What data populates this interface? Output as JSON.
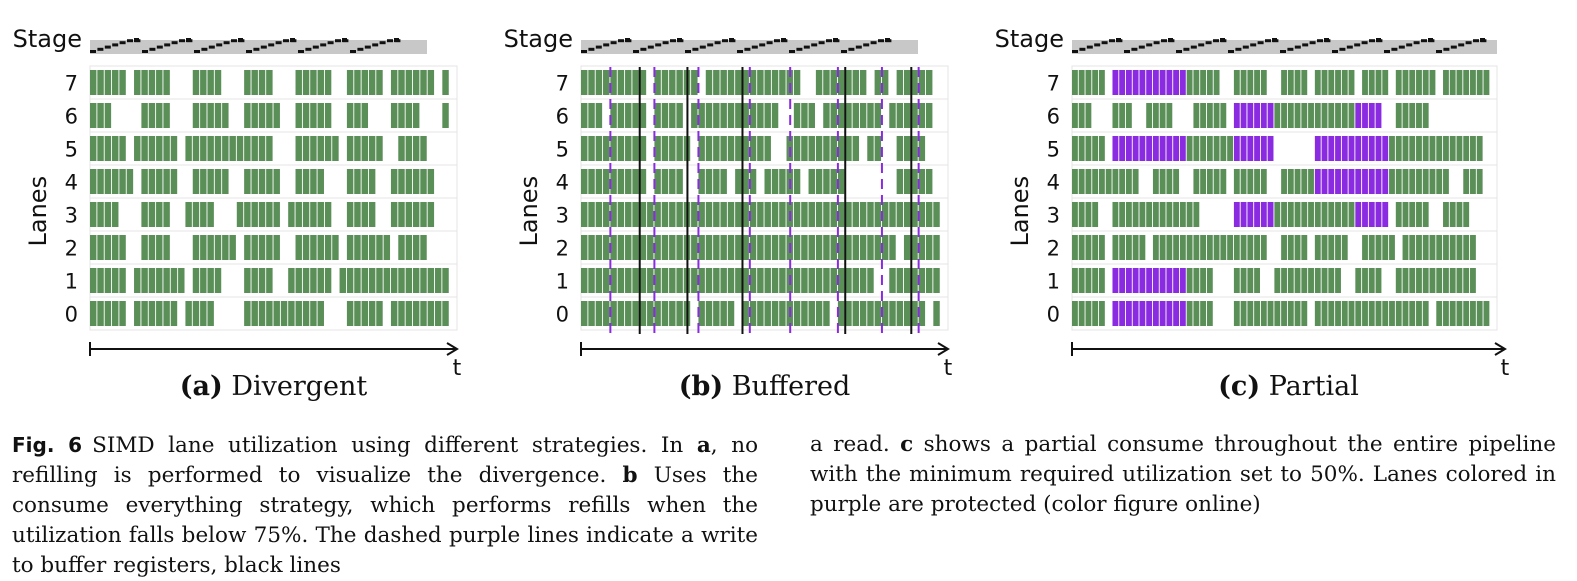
{
  "panels": [
    {
      "id": "a",
      "stage_label": "Stage",
      "lanes_label": "Lanes",
      "t_label": "t",
      "caption_letter": "(a)",
      "caption_text": "Divergent",
      "lane_labels": [
        "7",
        "6",
        "5",
        "4",
        "3",
        "2",
        "1",
        "0"
      ],
      "colors": {
        "active": "#5b8f58",
        "protected": "#8a2be2"
      },
      "chart_data": {
        "type": "table",
        "lanes": {
          "7": [
            [
              0,
              5
            ],
            [
              6,
              5
            ],
            [
              14,
              4
            ],
            [
              21,
              4
            ],
            [
              28,
              5
            ],
            [
              35,
              5
            ],
            [
              41,
              6
            ],
            [
              48,
              1
            ]
          ],
          "6": [
            [
              0,
              3
            ],
            [
              7,
              4
            ],
            [
              14,
              5
            ],
            [
              21,
              5
            ],
            [
              28,
              5
            ],
            [
              35,
              3
            ],
            [
              41,
              4
            ],
            [
              48,
              1
            ]
          ],
          "5": [
            [
              0,
              5
            ],
            [
              6,
              6
            ],
            [
              13,
              12
            ],
            [
              28,
              6
            ],
            [
              35,
              5
            ],
            [
              42,
              4
            ]
          ],
          "4": [
            [
              0,
              6
            ],
            [
              7,
              5
            ],
            [
              14,
              5
            ],
            [
              21,
              5
            ],
            [
              28,
              4
            ],
            [
              35,
              4
            ],
            [
              41,
              6
            ]
          ],
          "3": [
            [
              0,
              4
            ],
            [
              7,
              4
            ],
            [
              13,
              4
            ],
            [
              20,
              6
            ],
            [
              27,
              6
            ],
            [
              35,
              4
            ],
            [
              41,
              6
            ]
          ],
          "2": [
            [
              0,
              5
            ],
            [
              7,
              4
            ],
            [
              14,
              6
            ],
            [
              21,
              5
            ],
            [
              28,
              6
            ],
            [
              35,
              6
            ],
            [
              42,
              4
            ]
          ],
          "1": [
            [
              0,
              5
            ],
            [
              6,
              7
            ],
            [
              14,
              4
            ],
            [
              21,
              4
            ],
            [
              27,
              6
            ],
            [
              34,
              15
            ]
          ],
          "0": [
            [
              0,
              5
            ],
            [
              6,
              6
            ],
            [
              13,
              4
            ],
            [
              21,
              11
            ],
            [
              35,
              5
            ],
            [
              41,
              8
            ]
          ]
        },
        "protected": {},
        "purple_dashed": [],
        "black_lines": []
      }
    },
    {
      "id": "b",
      "stage_label": "Stage",
      "lanes_label": "Lanes",
      "t_label": "t",
      "caption_letter": "(b)",
      "caption_text": "Buffered",
      "lane_labels": [
        "7",
        "6",
        "5",
        "4",
        "3",
        "2",
        "1",
        "0"
      ],
      "colors": {
        "active": "#5b8f58",
        "protected": "#8a2be2"
      },
      "chart_data": {
        "type": "table",
        "lanes": {
          "7": [
            [
              0,
              9
            ],
            [
              10,
              6
            ],
            [
              17,
              7
            ],
            [
              24,
              6
            ],
            [
              32,
              2
            ],
            [
              34,
              5
            ],
            [
              40,
              2
            ],
            [
              43,
              1
            ],
            [
              44,
              4
            ]
          ],
          "6": [
            [
              0,
              3
            ],
            [
              4,
              5
            ],
            [
              10,
              4
            ],
            [
              15,
              6
            ],
            [
              21,
              6
            ],
            [
              29,
              3
            ],
            [
              33,
              3
            ],
            [
              36,
              5
            ],
            [
              42,
              1
            ],
            [
              43,
              5
            ]
          ],
          "5": [
            [
              0,
              2
            ],
            [
              2,
              7
            ],
            [
              10,
              5
            ],
            [
              16,
              6
            ],
            [
              22,
              4
            ],
            [
              28,
              4
            ],
            [
              32,
              6
            ],
            [
              39,
              2
            ],
            [
              43,
              4
            ]
          ],
          "4": [
            [
              0,
              4
            ],
            [
              4,
              5
            ],
            [
              10,
              4
            ],
            [
              16,
              4
            ],
            [
              21,
              3
            ],
            [
              25,
              5
            ],
            [
              31,
              5
            ],
            [
              43,
              5
            ]
          ],
          "3": [
            [
              0,
              9
            ],
            [
              9,
              8
            ],
            [
              17,
              5
            ],
            [
              22,
              6
            ],
            [
              28,
              7
            ],
            [
              35,
              6
            ],
            [
              41,
              8
            ]
          ],
          "2": [
            [
              0,
              9
            ],
            [
              9,
              7
            ],
            [
              16,
              6
            ],
            [
              22,
              6
            ],
            [
              28,
              6
            ],
            [
              34,
              3
            ],
            [
              37,
              6
            ],
            [
              44,
              5
            ]
          ],
          "1": [
            [
              0,
              5
            ],
            [
              5,
              4
            ],
            [
              9,
              8
            ],
            [
              17,
              5
            ],
            [
              22,
              6
            ],
            [
              28,
              7
            ],
            [
              35,
              5
            ],
            [
              42,
              7
            ]
          ],
          "0": [
            [
              0,
              4
            ],
            [
              4,
              5
            ],
            [
              9,
              6
            ],
            [
              16,
              5
            ],
            [
              22,
              7
            ],
            [
              29,
              5
            ],
            [
              35,
              7
            ],
            [
              42,
              5
            ],
            [
              48,
              1
            ]
          ]
        },
        "protected": {},
        "purple_dashed": [
          4,
          10,
          16,
          23,
          28.5,
          35,
          41,
          46
        ],
        "black_lines": [
          8,
          14.5,
          22,
          36,
          45
        ]
      }
    },
    {
      "id": "c",
      "stage_label": "Stage",
      "lanes_label": "Lanes",
      "t_label": "t",
      "caption_letter": "(c)",
      "caption_text": "Partial",
      "lane_labels": [
        "7",
        "6",
        "5",
        "4",
        "3",
        "2",
        "1",
        "0"
      ],
      "colors": {
        "active": "#5b8f58",
        "protected": "#8a2be2"
      },
      "chart_data": {
        "type": "table",
        "lanes": {
          "7": [
            [
              0,
              5
            ],
            [
              6,
              16
            ],
            [
              24,
              5
            ],
            [
              31,
              4
            ],
            [
              36,
              6
            ],
            [
              43,
              4
            ],
            [
              48,
              6
            ],
            [
              55,
              7
            ]
          ],
          "6": [
            [
              0,
              3
            ],
            [
              6,
              3
            ],
            [
              11,
              4
            ],
            [
              18,
              5
            ],
            [
              24,
              12
            ],
            [
              36,
              10
            ],
            [
              48,
              5
            ]
          ],
          "5": [
            [
              0,
              5
            ],
            [
              6,
              24
            ],
            [
              36,
              25
            ]
          ],
          "4": [
            [
              0,
              10
            ],
            [
              12,
              4
            ],
            [
              18,
              5
            ],
            [
              24,
              5
            ],
            [
              31,
              25
            ],
            [
              58,
              3
            ]
          ],
          "3": [
            [
              0,
              4
            ],
            [
              6,
              13
            ],
            [
              24,
              12
            ],
            [
              36,
              11
            ],
            [
              48,
              5
            ],
            [
              55,
              4
            ]
          ],
          "2": [
            [
              0,
              5
            ],
            [
              6,
              5
            ],
            [
              12,
              17
            ],
            [
              31,
              4
            ],
            [
              36,
              5
            ],
            [
              43,
              5
            ],
            [
              49,
              11
            ]
          ],
          "1": [
            [
              0,
              5
            ],
            [
              6,
              15
            ],
            [
              24,
              4
            ],
            [
              30,
              10
            ],
            [
              42,
              4
            ],
            [
              48,
              12
            ]
          ],
          "0": [
            [
              0,
              5
            ],
            [
              6,
              15
            ],
            [
              24,
              11
            ],
            [
              36,
              17
            ],
            [
              54,
              8
            ]
          ]
        },
        "protected": {
          "7": [
            [
              6,
              11
            ]
          ],
          "6": [
            [
              24,
              6
            ],
            [
              42,
              5
            ]
          ],
          "5": [
            [
              6,
              11
            ],
            [
              24,
              6
            ],
            [
              36,
              11
            ]
          ],
          "4": [
            [
              36,
              11
            ]
          ],
          "3": [
            [
              24,
              6
            ],
            [
              42,
              5
            ]
          ],
          "1": [
            [
              6,
              11
            ]
          ],
          "0": [
            [
              6,
              11
            ]
          ]
        },
        "purple_dashed": [],
        "black_lines": []
      }
    }
  ],
  "caption": {
    "fig_label": "Fig. 6",
    "col1_parts": [
      "SIMD lane utilization using different strategies. In ",
      "a",
      ", no refilling is performed to visualize the divergence. ",
      "b",
      " Uses the consume everything strategy, which performs refills when the utilization falls below 75%. The dashed purple lines indicate a write to buffer registers, black lines"
    ],
    "col2_parts": [
      "a read. ",
      "c",
      " shows a partial consume throughout the entire pipeline with the minimum required utilization set to 50%. Lanes colored in purple are protected (color figure online)"
    ]
  }
}
